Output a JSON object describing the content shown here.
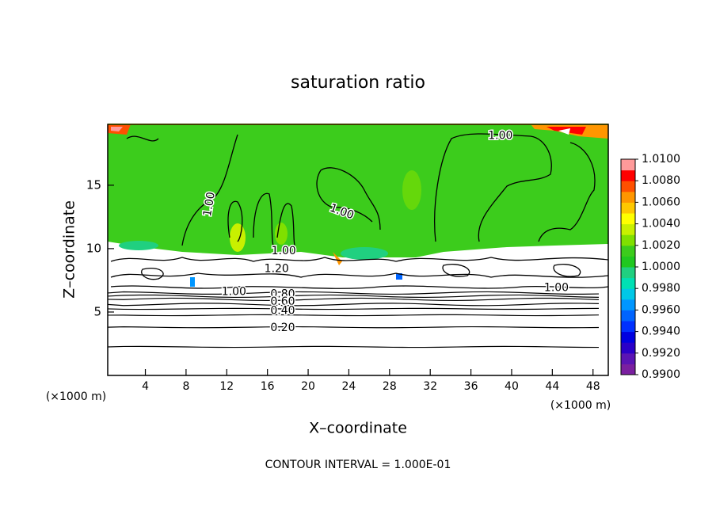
{
  "chart_data": {
    "type": "contour",
    "title": "saturation ratio",
    "xlabel": "X–coordinate",
    "ylabel": "Z–coordinate",
    "x_unit": "(×1000 m)",
    "y_unit": "(×1000 m)",
    "annotation": "CONTOUR INTERVAL = 1.000E-01",
    "xlim": [
      0.3,
      49.5
    ],
    "ylim": [
      0,
      19.8
    ],
    "xticks": [
      4,
      8,
      12,
      16,
      20,
      24,
      28,
      32,
      36,
      40,
      44,
      48
    ],
    "yticks": [
      5,
      10,
      15
    ],
    "colorbar": {
      "clim": [
        0.99,
        1.01
      ],
      "colors": [
        "#7a1fa0",
        "#5a14b4",
        "#2a00c8",
        "#0000e0",
        "#0030ff",
        "#0064ff",
        "#0096ff",
        "#00c8e6",
        "#00e0b4",
        "#20d080",
        "#20c820",
        "#3ccc1c",
        "#80e000",
        "#c8f000",
        "#ffff00",
        "#ffc800",
        "#ff9600",
        "#ff5000",
        "#ff0000",
        "#ff9a9a"
      ],
      "ticks": [
        {
          "value": 0.99,
          "label": "0.9900"
        },
        {
          "value": 0.992,
          "label": "0.9920"
        },
        {
          "value": 0.994,
          "label": "0.9940"
        },
        {
          "value": 0.996,
          "label": "0.9960"
        },
        {
          "value": 0.998,
          "label": "0.9980"
        },
        {
          "value": 1.0,
          "label": "1.0000"
        },
        {
          "value": 1.002,
          "label": "1.0020"
        },
        {
          "value": 1.004,
          "label": "1.0040"
        },
        {
          "value": 1.006,
          "label": "1.0060"
        },
        {
          "value": 1.008,
          "label": "1.0080"
        },
        {
          "value": 1.01,
          "label": "1.0100"
        }
      ]
    },
    "contour_lines": [
      {
        "level": 0.1,
        "z": 2.25
      },
      {
        "level": 0.2,
        "z": 3.8
      },
      {
        "level": 0.3,
        "z": 4.75
      },
      {
        "level": 0.4,
        "z": 5.25
      },
      {
        "level": 0.5,
        "z": 5.6
      },
      {
        "level": 0.6,
        "z": 6.0
      },
      {
        "level": 0.7,
        "z": 6.25
      },
      {
        "level": 0.8,
        "z": 6.5
      }
    ],
    "contour_labels": [
      {
        "value": 1.0,
        "label": "1.00",
        "x": 38.9,
        "z": 18.9,
        "angle": 0
      },
      {
        "value": 1.0,
        "label": "1.00",
        "x": 10.3,
        "z": 13.5,
        "angle": -80
      },
      {
        "value": 1.0,
        "label": "1.00",
        "x": 23.3,
        "z": 12.9,
        "angle": 20
      },
      {
        "value": 1.0,
        "label": "1.00",
        "x": 17.6,
        "z": 9.8,
        "angle": 0
      },
      {
        "value": 1.2,
        "label": "1.20",
        "x": 16.9,
        "z": 8.4,
        "angle": 0
      },
      {
        "value": 1.0,
        "label": "1.00",
        "x": 12.7,
        "z": 6.6,
        "angle": 0
      },
      {
        "value": 0.8,
        "label": "0.80",
        "x": 17.5,
        "z": 6.4,
        "angle": 0
      },
      {
        "value": 0.6,
        "label": "0.60",
        "x": 17.5,
        "z": 5.8,
        "angle": 0
      },
      {
        "value": 0.4,
        "label": "0.40",
        "x": 17.5,
        "z": 5.1,
        "angle": 0
      },
      {
        "value": 0.2,
        "label": "0.20",
        "x": 17.5,
        "z": 3.75,
        "angle": 0
      },
      {
        "value": 1.0,
        "label": "1.00",
        "x": 44.4,
        "z": 6.9,
        "angle": 0
      }
    ]
  }
}
